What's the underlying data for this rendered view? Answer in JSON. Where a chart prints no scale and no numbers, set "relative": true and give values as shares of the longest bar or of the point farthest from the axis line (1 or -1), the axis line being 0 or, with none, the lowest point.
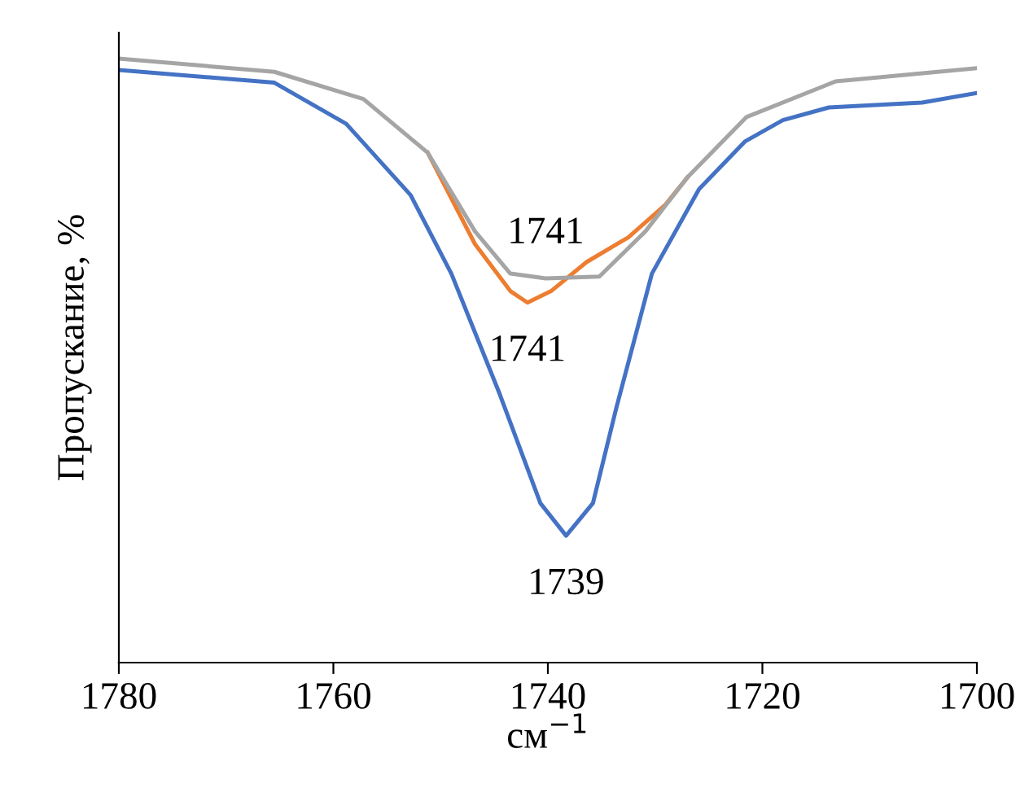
{
  "chart_data": {
    "type": "line",
    "relative": true,
    "xlabel": "см$^{−1}$",
    "ylabel": "Пропускание, %",
    "xlim": [
      1780,
      1700
    ],
    "xticks": [
      1780,
      1760,
      1740,
      1720,
      1700
    ],
    "grid": false,
    "series": [
      {
        "color": "#4472c4",
        "x": [
          1780,
          1765.5,
          1758.8,
          1752.8,
          1749,
          1744.5,
          1740.7,
          1738.3,
          1735.8,
          1733.6,
          1730.3,
          1725.9,
          1721.6,
          1718.1,
          1713.8,
          1705.1,
          1700
        ],
        "values": [
          0.981,
          0.96,
          0.892,
          0.774,
          0.644,
          0.445,
          0.264,
          0.21,
          0.264,
          0.423,
          0.644,
          0.784,
          0.863,
          0.898,
          0.919,
          0.927,
          0.943
        ]
      },
      {
        "color": "#ed7d31",
        "x": [
          1751.2,
          1746.8,
          1743.5,
          1741.9,
          1739.7,
          1736.4,
          1732.5,
          1729.1,
          1727
        ],
        "values": [
          0.844,
          0.693,
          0.615,
          0.596,
          0.615,
          0.663,
          0.704,
          0.757,
          0.803
        ]
      },
      {
        "color": "#a5a5a5",
        "x": [
          1780,
          1765.5,
          1757.2,
          1751.2,
          1746.8,
          1743.5,
          1740.2,
          1735.2,
          1730.9,
          1727,
          1721.5,
          1713.2,
          1700
        ],
        "values": [
          1.0,
          0.978,
          0.933,
          0.844,
          0.714,
          0.644,
          0.636,
          0.639,
          0.714,
          0.803,
          0.903,
          0.962,
          0.984
        ]
      }
    ],
    "annotations": [
      {
        "text": "1741",
        "x": 1740.2,
        "y": 0.636
      },
      {
        "text": "1741",
        "x": 1741.9,
        "y": 0.596
      },
      {
        "text": "1739",
        "x": 1738.3,
        "y": 0.21
      }
    ]
  }
}
